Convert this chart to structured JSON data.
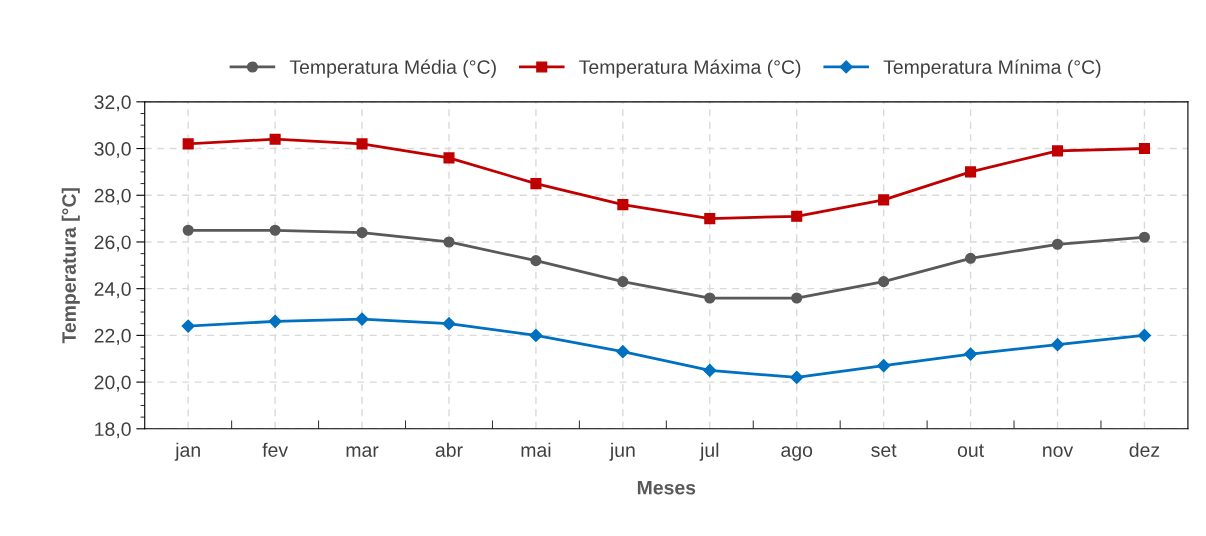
{
  "chart_data": {
    "type": "line",
    "xlabel": "Meses",
    "ylabel": "Temperatura [°C]",
    "categories": [
      "jan",
      "fev",
      "mar",
      "abr",
      "mai",
      "jun",
      "jul",
      "ago",
      "set",
      "out",
      "nov",
      "dez"
    ],
    "series": [
      {
        "name": "Temperatura Média (°C)",
        "color": "#595959",
        "marker": "circle",
        "values": [
          26.5,
          26.5,
          26.4,
          26.0,
          25.2,
          24.3,
          23.6,
          23.6,
          24.3,
          25.3,
          25.9,
          26.2
        ]
      },
      {
        "name": "Temperatura Máxima (°C)",
        "color": "#c00000",
        "marker": "square",
        "values": [
          30.2,
          30.4,
          30.2,
          29.6,
          28.5,
          27.6,
          27.0,
          27.1,
          27.8,
          29.0,
          29.9,
          30.0
        ]
      },
      {
        "name": "Temperatura Mínima (°C)",
        "color": "#0070c0",
        "marker": "diamond",
        "values": [
          22.4,
          22.6,
          22.7,
          22.5,
          22.0,
          21.3,
          20.5,
          20.2,
          20.7,
          21.2,
          21.6,
          22.0
        ]
      }
    ],
    "ylim": [
      18,
      32
    ],
    "yticks": [
      {
        "value": 18,
        "label": "18,0"
      },
      {
        "value": 20,
        "label": "20,0"
      },
      {
        "value": 22,
        "label": "22,0"
      },
      {
        "value": 24,
        "label": "24,0"
      },
      {
        "value": 26,
        "label": "26,0"
      },
      {
        "value": 28,
        "label": "28,0"
      },
      {
        "value": 30,
        "label": "30,0"
      },
      {
        "value": 32,
        "label": "32,0"
      }
    ],
    "grid": true,
    "legend": "top",
    "line_style": "solid"
  }
}
